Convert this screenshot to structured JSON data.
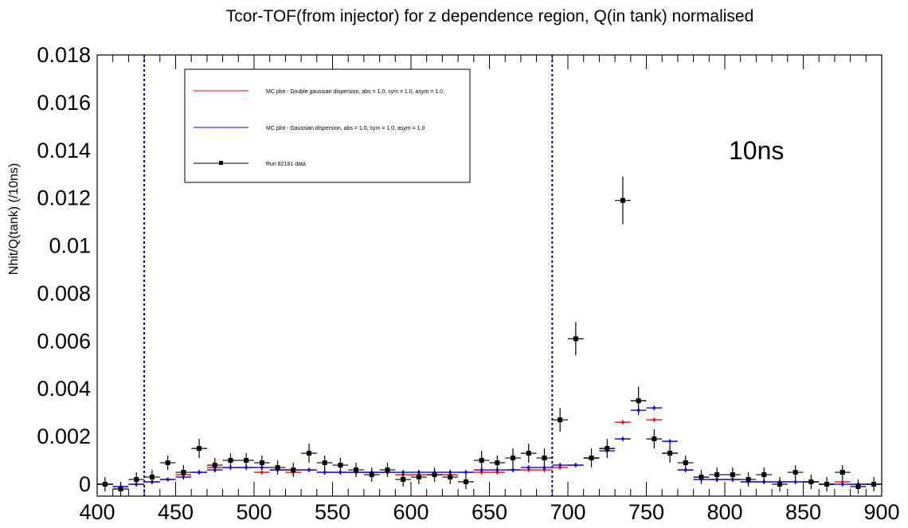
{
  "chart_data": {
    "type": "scatter",
    "title": "Tcor-TOF(from injector) for z dependence region, Q(in tank) normalised",
    "xlabel": "",
    "ylabel": "Nhit/Q(tank) (/10ns)",
    "xlim": [
      400,
      900
    ],
    "ylim": [
      -0.0005,
      0.018
    ],
    "xticks": [
      400,
      450,
      500,
      550,
      600,
      650,
      700,
      750,
      800,
      850,
      900
    ],
    "xtick_labels": [
      "400",
      "450",
      "500",
      "550",
      "600",
      "650",
      "700",
      "750",
      "800",
      "850",
      "900"
    ],
    "yticks": [
      0,
      0.002,
      0.004,
      0.006,
      0.008,
      0.01,
      0.012,
      0.014,
      0.016,
      0.018
    ],
    "ytick_labels": [
      "0",
      "0.002",
      "0.004",
      "0.006",
      "0.008",
      "0.01",
      "0.012",
      "0.014",
      "0.016",
      "0.018"
    ],
    "bin_width": 10,
    "grid": false,
    "legend_position": "top-left",
    "annotation": "10ns",
    "vertical_lines": [
      430,
      690
    ],
    "colors": {
      "red": "#ff0000",
      "blue": "#0000ff",
      "data": "#000000",
      "vline": "#0000aa"
    },
    "series": [
      {
        "name": "MC plot - Double gaussian dispersion, abs = 1.0, sym = 1.0, asym = 1.0",
        "color": "#ff0000",
        "x": [
          405,
          415,
          425,
          435,
          445,
          455,
          465,
          475,
          485,
          495,
          505,
          515,
          525,
          535,
          545,
          555,
          565,
          575,
          585,
          595,
          605,
          615,
          625,
          635,
          645,
          655,
          665,
          675,
          685,
          695,
          705,
          715,
          725,
          735,
          745,
          755,
          765,
          775,
          785,
          795,
          805,
          815,
          825,
          835,
          845,
          855,
          865,
          875,
          885,
          895
        ],
        "y": [
          0.0,
          -0.0001,
          0.0,
          0.0001,
          0.0002,
          0.0004,
          0.0005,
          0.0007,
          0.0007,
          0.0007,
          0.0005,
          0.0006,
          0.0005,
          0.0006,
          0.0005,
          0.0005,
          0.0005,
          0.0005,
          0.0005,
          0.0004,
          0.0004,
          0.0004,
          0.0004,
          0.0005,
          0.0005,
          0.0005,
          0.0006,
          0.0006,
          0.0006,
          0.0007,
          0.0008,
          0.0011,
          0.0015,
          0.0026,
          0.0035,
          0.0027,
          0.0013,
          0.0006,
          0.0003,
          0.0002,
          0.0002,
          0.0001,
          0.0001,
          0.0001,
          0.0001,
          0.0001,
          0.0,
          0.0001,
          0.0,
          0.0
        ],
        "yerr": [
          8e-05,
          8e-05,
          8e-05,
          8e-05,
          8e-05,
          0.0001,
          0.0001,
          0.0001,
          0.0001,
          0.0001,
          0.0001,
          0.0001,
          0.0001,
          0.0001,
          0.0001,
          0.0001,
          0.0001,
          0.0001,
          0.0001,
          0.0001,
          0.0001,
          0.0001,
          0.0001,
          0.0001,
          0.0001,
          0.0001,
          0.0001,
          0.0001,
          0.0001,
          0.0001,
          0.0001,
          0.0001,
          0.0001,
          0.0001,
          0.0001,
          0.0001,
          0.0001,
          0.0001,
          0.0001,
          0.0001,
          0.0001,
          0.0001,
          0.0001,
          0.0001,
          0.0001,
          0.0001,
          0.0001,
          0.0001,
          0.0001,
          0.0001
        ]
      },
      {
        "name": "MC plot - Gaussian dispersion, abs = 1.0, sym = 1.0, asym = 1.0",
        "color": "#0000ff",
        "x": [
          405,
          415,
          425,
          435,
          445,
          455,
          465,
          475,
          485,
          495,
          505,
          515,
          525,
          535,
          545,
          555,
          565,
          575,
          585,
          595,
          605,
          615,
          625,
          635,
          645,
          655,
          665,
          675,
          685,
          695,
          705,
          715,
          725,
          735,
          745,
          755,
          765,
          775,
          785,
          795,
          805,
          815,
          825,
          835,
          845,
          855,
          865,
          875,
          885,
          895
        ],
        "y": [
          0.0,
          -0.0001,
          0.0,
          0.0001,
          0.0002,
          0.0003,
          0.0005,
          0.0006,
          0.0007,
          0.0007,
          0.0007,
          0.0006,
          0.0006,
          0.0006,
          0.0005,
          0.0005,
          0.0005,
          0.0005,
          0.0005,
          0.0005,
          0.0005,
          0.0005,
          0.0005,
          0.0005,
          0.0006,
          0.0006,
          0.0006,
          0.0007,
          0.0007,
          0.0008,
          0.0008,
          0.0011,
          0.0014,
          0.0019,
          0.0031,
          0.0032,
          0.0018,
          0.0006,
          0.0002,
          0.0002,
          0.0002,
          0.0001,
          0.0001,
          0.0001,
          0.0001,
          0.0001,
          0.0,
          0.0,
          0.0,
          0.0
        ],
        "yerr": [
          8e-05,
          8e-05,
          8e-05,
          8e-05,
          8e-05,
          0.0001,
          0.0001,
          0.0001,
          0.0001,
          0.0001,
          0.0001,
          0.0001,
          0.0001,
          0.0001,
          0.0001,
          0.0001,
          0.0001,
          0.0001,
          0.0001,
          0.0001,
          0.0001,
          0.0001,
          0.0001,
          0.0001,
          0.0001,
          0.0001,
          0.0001,
          0.0001,
          0.0001,
          0.0001,
          0.0001,
          0.0001,
          0.0001,
          0.0001,
          0.0001,
          0.0001,
          0.0001,
          0.0001,
          0.0001,
          0.0001,
          0.0001,
          0.0001,
          0.0001,
          0.0001,
          0.0001,
          0.0001,
          0.0001,
          0.0001,
          0.0001,
          0.0001
        ]
      },
      {
        "name": "Run 82181 data",
        "color": "#000000",
        "x": [
          405,
          415,
          425,
          435,
          445,
          455,
          465,
          475,
          485,
          495,
          505,
          515,
          525,
          535,
          545,
          555,
          565,
          575,
          585,
          595,
          605,
          615,
          625,
          635,
          645,
          655,
          665,
          675,
          685,
          695,
          705,
          715,
          725,
          735,
          745,
          755,
          765,
          775,
          785,
          795,
          805,
          815,
          825,
          835,
          845,
          855,
          865,
          875,
          885,
          895
        ],
        "y": [
          0.0,
          -0.0002,
          0.0002,
          0.0003,
          0.0009,
          0.0005,
          0.0015,
          0.0008,
          0.001,
          0.001,
          0.0009,
          0.0007,
          0.0006,
          0.0013,
          0.0009,
          0.0008,
          0.0006,
          0.0004,
          0.0006,
          0.0002,
          0.0003,
          0.0004,
          0.0003,
          0.0001,
          0.001,
          0.0009,
          0.0011,
          0.0013,
          0.0011,
          0.0027,
          0.0061,
          0.0011,
          0.0015,
          0.0119,
          0.0035,
          0.0019,
          0.0013,
          0.0009,
          0.0003,
          0.0004,
          0.0004,
          0.0002,
          0.0004,
          0.0,
          0.0005,
          0.0001,
          0.0,
          0.0005,
          -0.0001,
          0.0
        ],
        "yerr": [
          0.0003,
          0.0003,
          0.0003,
          0.0003,
          0.0003,
          0.0003,
          0.0004,
          0.0003,
          0.0003,
          0.0003,
          0.0003,
          0.0003,
          0.0003,
          0.0004,
          0.0003,
          0.0003,
          0.0003,
          0.0003,
          0.0003,
          0.0003,
          0.0003,
          0.0003,
          0.0003,
          0.0003,
          0.0004,
          0.0003,
          0.0004,
          0.0004,
          0.0004,
          0.0005,
          0.0007,
          0.0004,
          0.0004,
          0.001,
          0.0006,
          0.0004,
          0.0004,
          0.0003,
          0.0003,
          0.0003,
          0.0003,
          0.0003,
          0.0003,
          0.0003,
          0.0003,
          0.0003,
          0.0003,
          0.0003,
          0.0003,
          0.0003
        ]
      }
    ]
  }
}
